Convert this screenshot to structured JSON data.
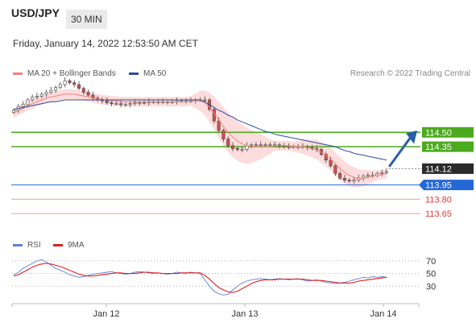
{
  "header": {
    "symbol": "USD/JPY",
    "timeframe": "30 MIN",
    "datetime": "Friday, January 14, 2022 12:53:50 AM CET"
  },
  "legend": {
    "ma20_label": "MA 20 + Bollinger Bands",
    "ma50_label": "MA 50",
    "credit": "Research © 2022 Trading Central",
    "colors": {
      "ma20": "#f08080",
      "ma50": "#2c4f9a",
      "bands": "#fbd0d0"
    }
  },
  "rsi_legend": {
    "rsi_label": "RSI",
    "ma_label": "9MA",
    "colors": {
      "rsi": "#5b7fdb",
      "ma": "#e02020"
    }
  },
  "chart_data": {
    "type": "candlestick",
    "symbol": "USD/JPY",
    "y_range": [
      113.5,
      115.0
    ],
    "x_ticks": [
      "Jan 12",
      "Jan 13",
      "Jan 14"
    ],
    "current_price": 114.12,
    "levels": [
      {
        "label": "114.50",
        "value": 114.5,
        "kind": "resistance",
        "color": "#4caa1e"
      },
      {
        "label": "114.35",
        "value": 114.35,
        "kind": "resistance",
        "color": "#4caa1e"
      },
      {
        "label": "114.12",
        "value": 114.12,
        "kind": "last",
        "color": "#2b2b2b"
      },
      {
        "label": "113.95",
        "value": 113.95,
        "kind": "pivot",
        "color": "#2468d8"
      },
      {
        "label": "113.80",
        "value": 113.8,
        "kind": "support",
        "color": "#e23a3a"
      },
      {
        "label": "113.65",
        "value": 113.65,
        "kind": "support",
        "color": "#e23a3a"
      }
    ],
    "close": [
      114.73,
      114.77,
      114.79,
      114.84,
      114.87,
      114.88,
      114.9,
      114.92,
      114.94,
      114.97,
      115.0,
      115.04,
      115.02,
      115.0,
      114.96,
      114.92,
      114.89,
      114.86,
      114.84,
      114.83,
      114.81,
      114.8,
      114.8,
      114.79,
      114.79,
      114.8,
      114.81,
      114.81,
      114.81,
      114.82,
      114.82,
      114.82,
      114.82,
      114.82,
      114.82,
      114.83,
      114.83,
      114.83,
      114.83,
      114.84,
      114.84,
      114.84,
      114.74,
      114.62,
      114.52,
      114.43,
      114.36,
      114.33,
      114.32,
      114.32,
      114.36,
      114.37,
      114.37,
      114.37,
      114.37,
      114.37,
      114.37,
      114.36,
      114.35,
      114.35,
      114.35,
      114.35,
      114.35,
      114.34,
      114.33,
      114.32,
      114.27,
      114.21,
      114.15,
      114.07,
      114.02,
      114.0,
      113.99,
      114.0,
      114.02,
      114.04,
      114.05,
      114.05,
      114.07,
      114.08,
      114.09
    ],
    "ma20": [
      114.7,
      114.73,
      114.75,
      114.78,
      114.8,
      114.82,
      114.84,
      114.86,
      114.87,
      114.88,
      114.89,
      114.9,
      114.9,
      114.9,
      114.89,
      114.88,
      114.87,
      114.86,
      114.85,
      114.84,
      114.84,
      114.83,
      114.83,
      114.82,
      114.82,
      114.82,
      114.82,
      114.82,
      114.82,
      114.82,
      114.82,
      114.82,
      114.82,
      114.82,
      114.82,
      114.82,
      114.82,
      114.82,
      114.83,
      114.83,
      114.83,
      114.81,
      114.76,
      114.7,
      114.63,
      114.56,
      114.5,
      114.45,
      114.41,
      114.38,
      114.36,
      114.35,
      114.35,
      114.35,
      114.35,
      114.35,
      114.36,
      114.36,
      114.36,
      114.36,
      114.35,
      114.35,
      114.35,
      114.34,
      114.33,
      114.32,
      114.29,
      114.26,
      114.22,
      114.17,
      114.12,
      114.08,
      114.05,
      114.03,
      114.02,
      114.02,
      114.03,
      114.04,
      114.05,
      114.06,
      114.07
    ],
    "ma50": [
      114.74,
      114.75,
      114.76,
      114.77,
      114.78,
      114.79,
      114.8,
      114.81,
      114.82,
      114.82,
      114.83,
      114.84,
      114.84,
      114.84,
      114.84,
      114.84,
      114.84,
      114.84,
      114.84,
      114.84,
      114.84,
      114.84,
      114.84,
      114.84,
      114.84,
      114.84,
      114.84,
      114.84,
      114.84,
      114.84,
      114.84,
      114.84,
      114.84,
      114.84,
      114.84,
      114.84,
      114.84,
      114.84,
      114.84,
      114.84,
      114.84,
      114.82,
      114.79,
      114.76,
      114.73,
      114.71,
      114.68,
      114.66,
      114.63,
      114.61,
      114.59,
      114.57,
      114.55,
      114.53,
      114.51,
      114.5,
      114.48,
      114.47,
      114.46,
      114.45,
      114.44,
      114.43,
      114.42,
      114.41,
      114.4,
      114.39,
      114.38,
      114.37,
      114.36,
      114.35,
      114.33,
      114.31,
      114.3,
      114.28,
      114.27,
      114.26,
      114.25,
      114.24,
      114.23,
      114.22,
      114.21
    ],
    "rsi": {
      "y_range": [
        10,
        80
      ],
      "ticks": [
        70,
        50,
        30
      ],
      "values": [
        48,
        52,
        58,
        62,
        66,
        70,
        72,
        68,
        63,
        58,
        55,
        52,
        48,
        46,
        44,
        45,
        47,
        49,
        50,
        51,
        52,
        53,
        51,
        50,
        49,
        50,
        52,
        53,
        52,
        51,
        50,
        51,
        50,
        49,
        50,
        52,
        51,
        50,
        52,
        51,
        50,
        40,
        30,
        22,
        18,
        16,
        17,
        24,
        30,
        35,
        38,
        40,
        41,
        42,
        41,
        40,
        41,
        42,
        41,
        40,
        41,
        42,
        40,
        38,
        39,
        40,
        38,
        36,
        35,
        34,
        35,
        36,
        38,
        40,
        42,
        44,
        43,
        45,
        44,
        45,
        44
      ],
      "ma": [
        46,
        48,
        52,
        56,
        60,
        63,
        65,
        66,
        65,
        63,
        61,
        58,
        55,
        52,
        49,
        47,
        46,
        46,
        47,
        48,
        49,
        50,
        51,
        51,
        50,
        50,
        50,
        51,
        52,
        52,
        51,
        51,
        50,
        50,
        50,
        50,
        51,
        51,
        51,
        51,
        51,
        47,
        41,
        34,
        28,
        24,
        21,
        20,
        22,
        26,
        30,
        34,
        37,
        39,
        40,
        40,
        40,
        41,
        41,
        41,
        41,
        41,
        41,
        40,
        39,
        39,
        39,
        38,
        37,
        36,
        35,
        35,
        35,
        36,
        38,
        39,
        40,
        41,
        42,
        43,
        44
      ]
    }
  }
}
